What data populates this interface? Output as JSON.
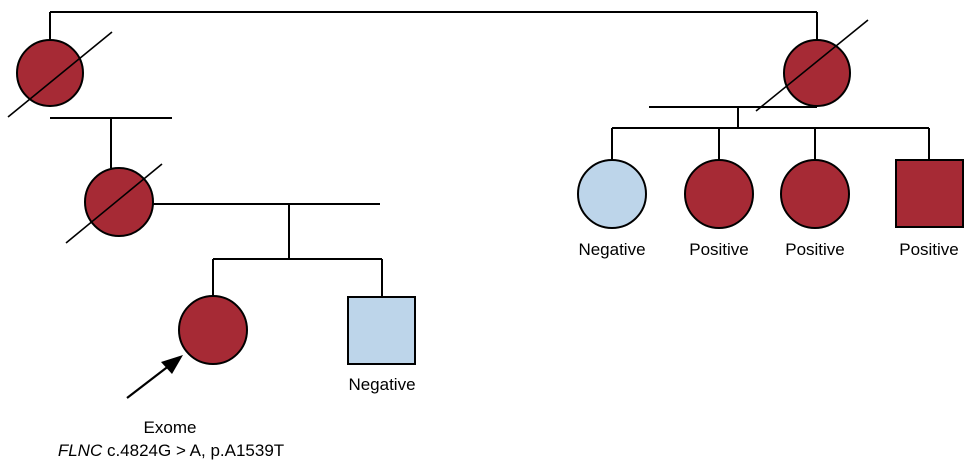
{
  "labels": {
    "aunt1": "Negative",
    "aunt2": "Positive",
    "aunt3": "Positive",
    "uncle": "Positive",
    "brother": "Negative",
    "proband_test": "Exome",
    "gene": "FLNC",
    "variant": " c.4824G > A, p.A1539T"
  },
  "colors": {
    "affected": "#a62a35",
    "unaffected": "#bdd5ea"
  }
}
